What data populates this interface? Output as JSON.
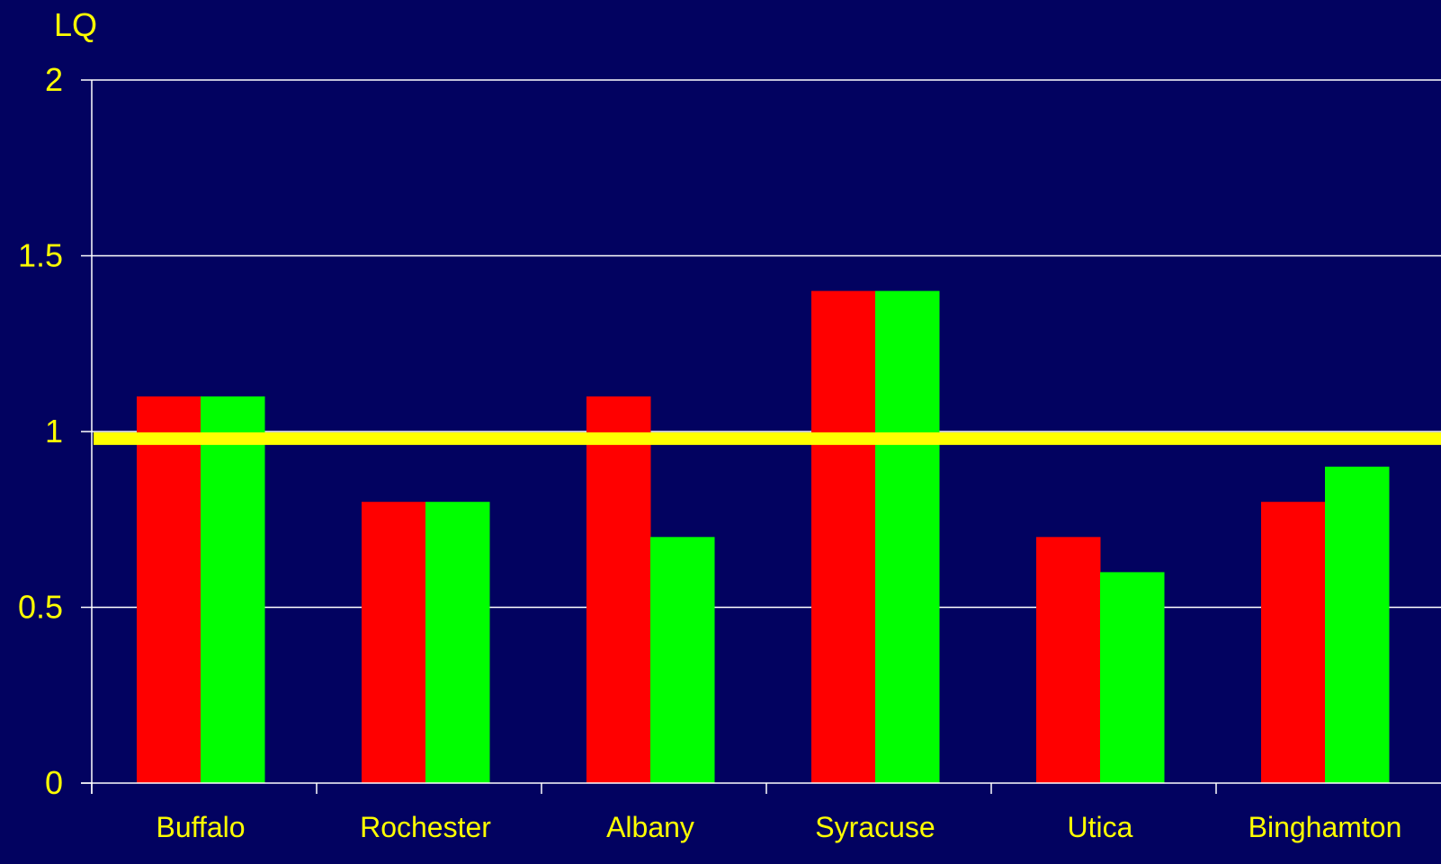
{
  "chart_data": {
    "type": "bar",
    "ylabel": "LQ",
    "categories": [
      "Buffalo",
      "Rochester",
      "Albany",
      "Syracuse",
      "Utica",
      "Binghamton"
    ],
    "series": [
      {
        "color": "#FF0000",
        "values": [
          1.1,
          0.8,
          1.1,
          1.4,
          0.7,
          0.8
        ]
      },
      {
        "color": "#00FF00",
        "values": [
          1.1,
          0.8,
          0.7,
          1.4,
          0.6,
          0.9
        ]
      }
    ],
    "ylim": [
      0,
      2
    ],
    "yticks": [
      0,
      0.5,
      1,
      1.5,
      2
    ],
    "ytick_labels": [
      "0",
      "0.5",
      "1",
      "1.5",
      "2"
    ],
    "reference_line": {
      "value": 0.98,
      "color": "#FFFF00"
    },
    "grid": true,
    "background": "#020260",
    "grid_color": "#FFFFFF",
    "text_color": "#FFFF00"
  }
}
